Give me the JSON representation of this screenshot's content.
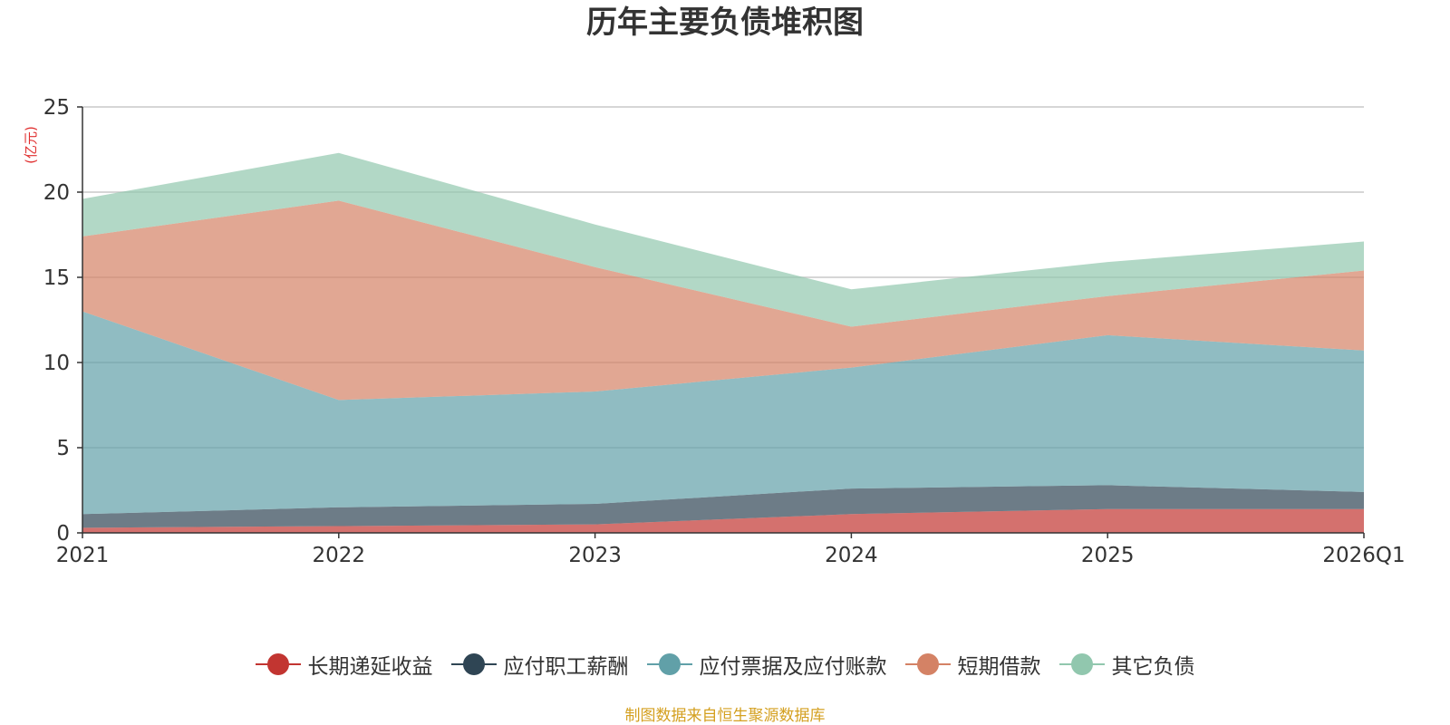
{
  "chart_data": {
    "type": "area",
    "stacked": true,
    "title": "历年主要负债堆积图",
    "unit_label": "(亿元)",
    "categories": [
      "2021",
      "2022",
      "2023",
      "2024",
      "2025",
      "2026Q1"
    ],
    "y_ticks": [
      "0",
      "5",
      "10",
      "15",
      "20",
      "25"
    ],
    "ylim": [
      0,
      25
    ],
    "grid": true,
    "legend_position": "bottom-center",
    "series": [
      {
        "name": "长期递延收益",
        "color": "#c23531",
        "values": [
          0.3,
          0.4,
          0.5,
          1.1,
          1.4,
          1.4
        ]
      },
      {
        "name": "应付职工薪酬",
        "color": "#2f4554",
        "values": [
          0.8,
          1.1,
          1.2,
          1.5,
          1.4,
          1.0
        ]
      },
      {
        "name": "应付票据及应付账款",
        "color": "#61a0a8",
        "values": [
          11.9,
          6.3,
          6.6,
          7.1,
          8.8,
          8.3
        ]
      },
      {
        "name": "短期借款",
        "color": "#d48265",
        "values": [
          4.4,
          11.7,
          7.3,
          2.4,
          2.3,
          4.7
        ]
      },
      {
        "name": "其它负债",
        "color": "#91c7ae",
        "values": [
          2.2,
          2.8,
          2.5,
          2.2,
          2.0,
          1.7
        ]
      }
    ],
    "source_note": "制图数据来自恒生聚源数据库"
  }
}
